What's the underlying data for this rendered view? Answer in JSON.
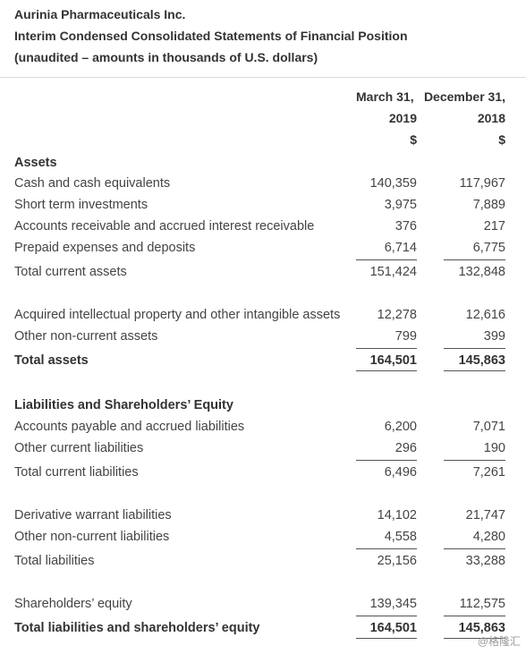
{
  "header": {
    "company": "Aurinia Pharmaceuticals Inc.",
    "statement": "Interim Condensed Consolidated Statements of Financial Position",
    "basis": "(unaudited – amounts in thousands of U.S. dollars)"
  },
  "columns": [
    {
      "date": "March 31,",
      "year": "2019",
      "unit": "$"
    },
    {
      "date": "December 31,",
      "year": "2018",
      "unit": "$"
    }
  ],
  "rows": [
    {
      "label": "Assets",
      "v1": "",
      "v2": ""
    },
    {
      "label": "Cash and cash equivalents",
      "v1": "140,359",
      "v2": "117,967"
    },
    {
      "label": "Short term investments",
      "v1": "3,975",
      "v2": "7,889"
    },
    {
      "label": "Accounts receivable and accrued interest receivable",
      "v1": "376",
      "v2": "217"
    },
    {
      "label": "Prepaid expenses and deposits",
      "v1": "6,714",
      "v2": "6,775"
    },
    {
      "label": "Total current assets",
      "v1": "151,424",
      "v2": "132,848"
    },
    {
      "label": "Acquired intellectual property and other intangible assets",
      "v1": "12,278",
      "v2": "12,616"
    },
    {
      "label": "Other non-current assets",
      "v1": "799",
      "v2": "399"
    },
    {
      "label": "Total assets",
      "v1": "164,501",
      "v2": "145,863"
    },
    {
      "label": "Liabilities and Shareholders’ Equity",
      "v1": "",
      "v2": ""
    },
    {
      "label": "Accounts payable and accrued liabilities",
      "v1": "6,200",
      "v2": "7,071"
    },
    {
      "label": "Other current liabilities",
      "v1": "296",
      "v2": "190"
    },
    {
      "label": "Total current liabilities",
      "v1": "6,496",
      "v2": "7,261"
    },
    {
      "label": "Derivative warrant liabilities",
      "v1": "14,102",
      "v2": "21,747"
    },
    {
      "label": "Other non-current liabilities",
      "v1": "4,558",
      "v2": "4,280"
    },
    {
      "label": "Total liabilities",
      "v1": "25,156",
      "v2": "33,288"
    },
    {
      "label": "Shareholders’ equity",
      "v1": "139,345",
      "v2": "112,575"
    },
    {
      "label": "Total liabilities and shareholders’ equity",
      "v1": "164,501",
      "v2": "145,863"
    }
  ],
  "watermark": "@格隆汇"
}
